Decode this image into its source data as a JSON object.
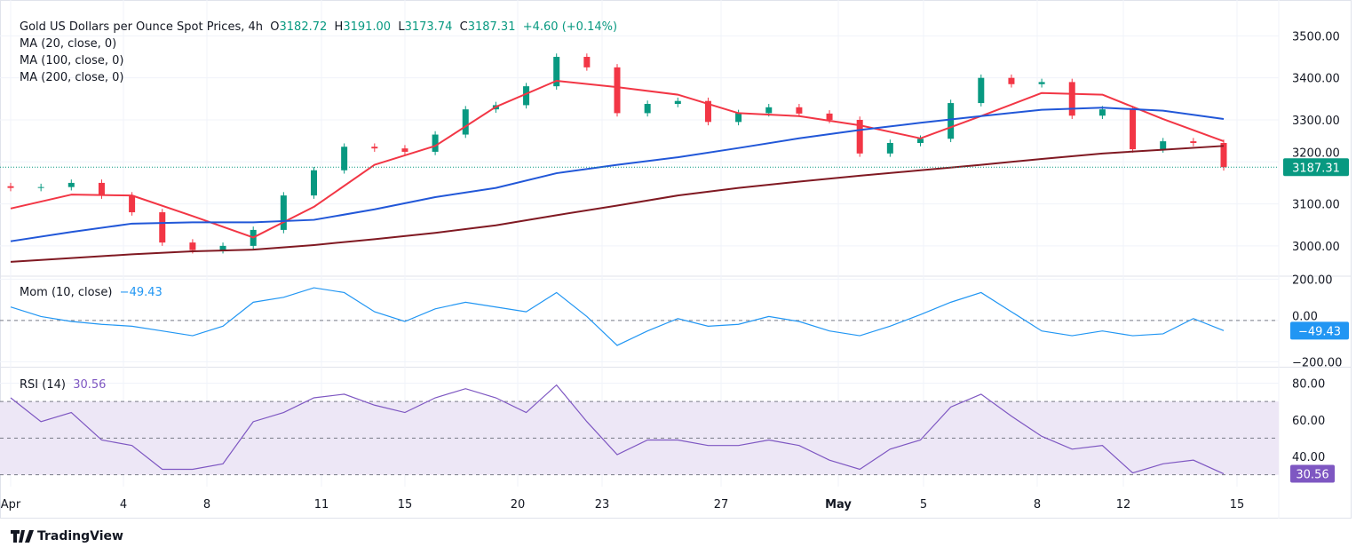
{
  "header": {
    "title": "Gold US Dollars per Ounce Spot Prices, 4h",
    "open_label": "O",
    "open": "3182.72",
    "high_label": "H",
    "high": "3191.00",
    "low_label": "L",
    "low": "3173.74",
    "close_label": "C",
    "close": "3187.31",
    "change": "+4.60 (+0.14%)",
    "ma_labels": [
      "MA (20, close, 0)",
      "MA (100, close, 0)",
      "MA (200, close, 0)"
    ]
  },
  "indicators": {
    "mom_label": "Mom (10, close)",
    "mom_value": "−49.43",
    "rsi_label": "RSI (14)",
    "rsi_value": "30.56"
  },
  "branding": {
    "logo_text": "TradingView",
    "logo_icon": "tradingview-logo-icon"
  },
  "colors": {
    "up": "#089981",
    "down": "#f23645",
    "ma20": "#f23645",
    "ma100": "#2157d8",
    "ma200": "#801922",
    "mom": "#2196f3",
    "rsi": "#7e57c2",
    "rsi_band": "#ede7f6"
  },
  "chart_data": [
    {
      "type": "candlestick",
      "title": "Gold US Dollars per Ounce Spot Prices, 4h",
      "ylim": [
        2930,
        3560
      ],
      "y_ticks": [
        "3500.00",
        "3400.00",
        "3300.00",
        "3200.00",
        "3100.00",
        "3000.00"
      ],
      "x_ticks": [
        "Apr",
        "4",
        "8",
        "11",
        "15",
        "20",
        "23",
        "27",
        "May",
        "5",
        "8",
        "12",
        "15"
      ],
      "last_price_label": "3187.31",
      "close": [
        3138,
        3140,
        3150,
        3120,
        3080,
        3008,
        2990,
        3000,
        3038,
        3120,
        3180,
        3236,
        3232,
        3224,
        3265,
        3325,
        3335,
        3380,
        3450,
        3425,
        3316,
        3338,
        3345,
        3295,
        3316,
        3330,
        3315,
        3300,
        3220,
        3245,
        3255,
        3340,
        3400,
        3385,
        3390,
        3310,
        3325,
        3230,
        3249,
        3245,
        3187.31
      ],
      "series": [
        {
          "name": "MA (20, close, 0)",
          "values": [
            3089,
            3122,
            3120,
            3071,
            3020,
            3093,
            3193,
            3238,
            3331,
            3393,
            3378,
            3360,
            3316,
            3309,
            3287,
            3256,
            3309,
            3364,
            3360,
            3302,
            3249
          ]
        },
        {
          "name": "MA (100, close, 0)",
          "values": [
            3011,
            3033,
            3053,
            3056,
            3056,
            3062,
            3087,
            3116,
            3138,
            3173,
            3193,
            3211,
            3233,
            3256,
            3276,
            3293,
            3309,
            3324,
            3329,
            3322,
            3302
          ]
        },
        {
          "name": "MA (200, close, 0)",
          "values": [
            2962,
            2971,
            2980,
            2987,
            2991,
            3002,
            3016,
            3031,
            3049,
            3073,
            3096,
            3120,
            3138,
            3153,
            3167,
            3180,
            3193,
            3207,
            3220,
            3229,
            3238
          ]
        }
      ]
    },
    {
      "type": "line",
      "title": "Mom (10, close)",
      "ylim": [
        -220,
        210
      ],
      "y_ticks": [
        "200.00",
        "0.00",
        "−200.00"
      ],
      "last_value_label": "−49.43",
      "values": [
        65,
        19,
        -5,
        -19,
        -28,
        -51,
        -74,
        -28,
        88,
        112,
        158,
        135,
        42,
        -5,
        56,
        88,
        65,
        42,
        135,
        19,
        -121,
        -51,
        9,
        -28,
        -19,
        19,
        -5,
        -51,
        -74,
        -28,
        28,
        88,
        135,
        42,
        -51,
        -74,
        -51,
        -74,
        -65,
        9,
        -49.43
      ]
    },
    {
      "type": "line",
      "title": "RSI (14)",
      "ylim": [
        25,
        88
      ],
      "y_ticks": [
        "80.00",
        "60.00",
        "40.00"
      ],
      "bands": [
        30,
        50,
        70
      ],
      "last_value_label": "30.56",
      "values": [
        72,
        59,
        64,
        49,
        46,
        33,
        33,
        36,
        59,
        64,
        72,
        74,
        68,
        64,
        72,
        77,
        72,
        64,
        79,
        59,
        41,
        49,
        49,
        46,
        46,
        49,
        46,
        38,
        33,
        44,
        49,
        67,
        74,
        62,
        51,
        44,
        46,
        31,
        36,
        38,
        30.56
      ]
    }
  ]
}
